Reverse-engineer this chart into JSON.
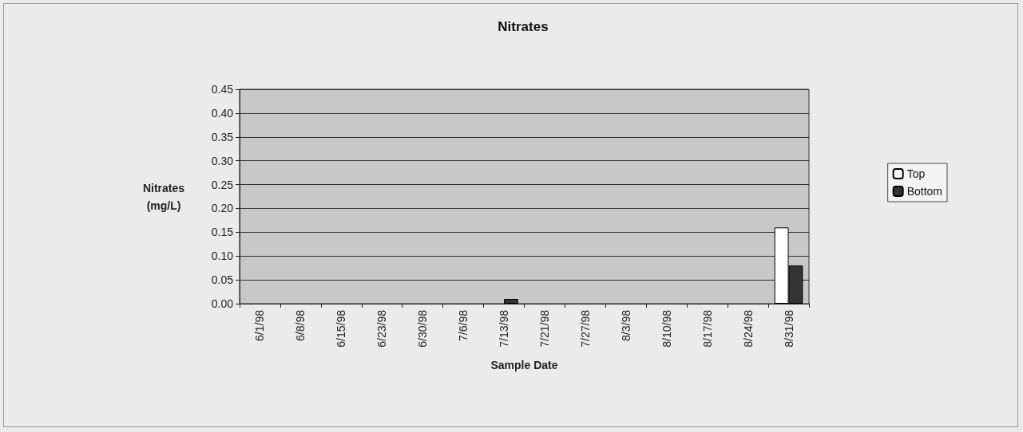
{
  "chart_data": {
    "type": "bar",
    "title": "Nitrates",
    "xlabel": "Sample Date",
    "ylabel": "Nitrates\n(mg/L)",
    "categories": [
      "6/1/98",
      "6/8/98",
      "6/15/98",
      "6/23/98",
      "6/30/98",
      "7/6/98",
      "7/13/98",
      "7/21/98",
      "7/27/98",
      "8/3/98",
      "8/10/98",
      "8/17/98",
      "8/24/98",
      "8/31/98"
    ],
    "series": [
      {
        "name": "Top",
        "color": "#ffffff",
        "values": [
          null,
          null,
          null,
          null,
          null,
          null,
          null,
          null,
          null,
          null,
          null,
          null,
          null,
          0.16
        ]
      },
      {
        "name": "Bottom",
        "color": "#333333",
        "values": [
          null,
          null,
          null,
          null,
          null,
          null,
          0.01,
          null,
          null,
          null,
          null,
          null,
          null,
          0.08
        ]
      }
    ],
    "ylim": [
      0,
      0.45
    ],
    "yticks": [
      {
        "value": 0,
        "label": "0.00"
      },
      {
        "value": 0.05,
        "label": "0.05"
      },
      {
        "value": 0.1,
        "label": "0.10"
      },
      {
        "value": 0.15,
        "label": "0.15"
      },
      {
        "value": 0.2,
        "label": "0.20"
      },
      {
        "value": 0.25,
        "label": "0.25"
      },
      {
        "value": 0.3,
        "label": "0.30"
      },
      {
        "value": 0.35,
        "label": "0.35"
      },
      {
        "value": 0.4,
        "label": "0.40"
      },
      {
        "value": 0.45,
        "label": "0.45"
      }
    ],
    "grid": "y",
    "legend": "right"
  }
}
